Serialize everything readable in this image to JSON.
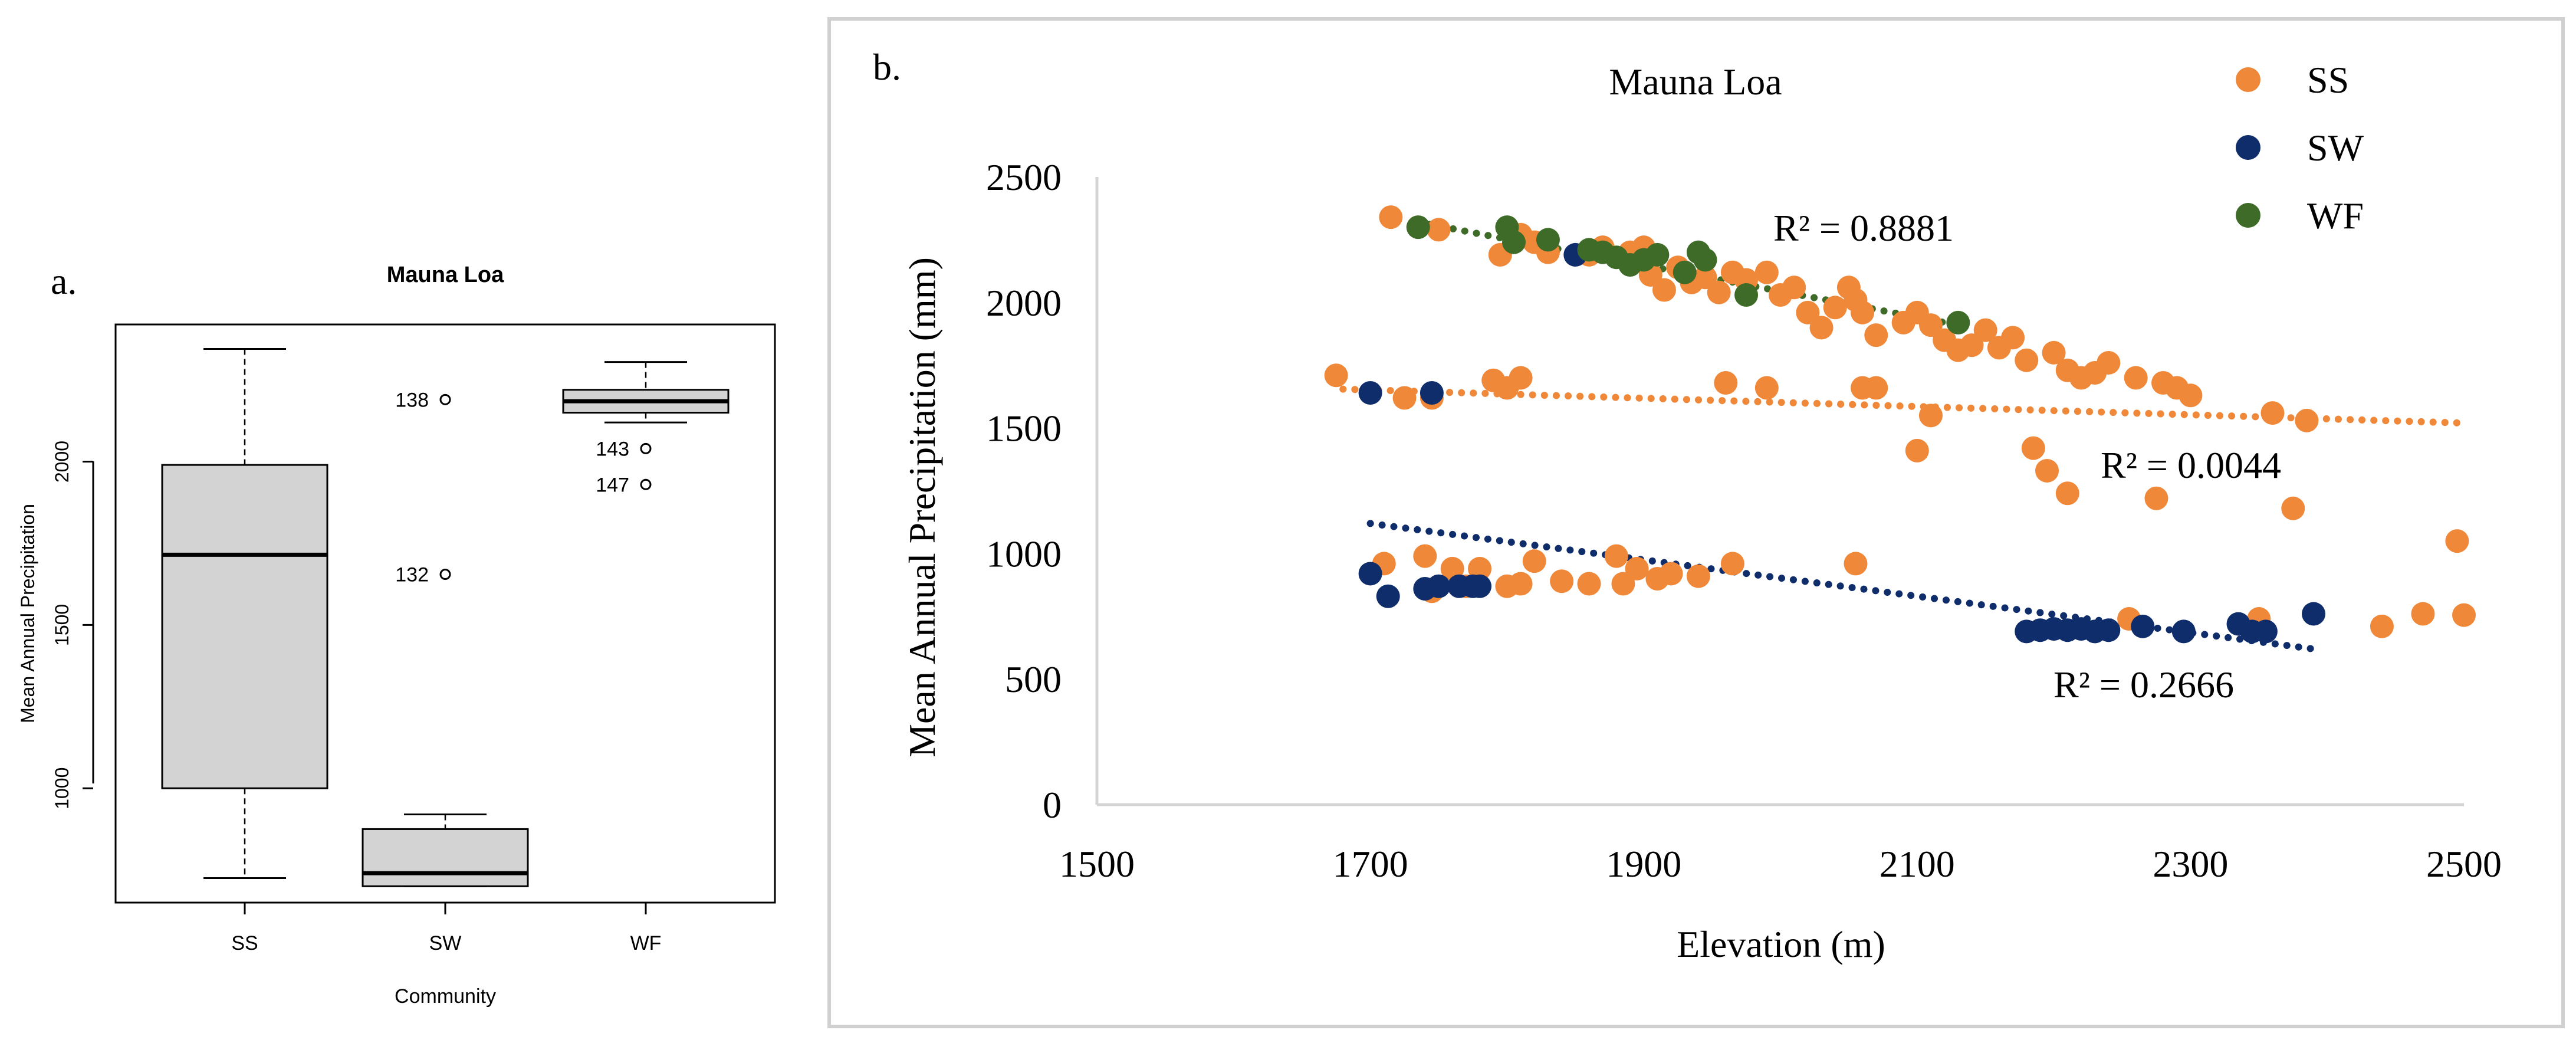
{
  "panel_a": {
    "label": "a.",
    "chart_data": {
      "type": "box",
      "title": "Mauna Loa",
      "xlabel": "Community",
      "ylabel": "Mean Annual Precipitation",
      "categories": [
        "SS",
        "SW",
        "WF"
      ],
      "ylim": [
        650,
        2420
      ],
      "yticks": [
        1000,
        1500,
        2000
      ],
      "boxes": [
        {
          "name": "SS",
          "min": 725,
          "q1": 1000,
          "median": 1715,
          "q3": 1990,
          "max": 2345,
          "outliers": []
        },
        {
          "name": "SW",
          "min": 700,
          "q1": 700,
          "median": 740,
          "q3": 875,
          "max": 920,
          "outliers": [
            {
              "value": 2190,
              "label": "138"
            },
            {
              "value": 1655,
              "label": "132"
            }
          ]
        },
        {
          "name": "WF",
          "min": 2120,
          "q1": 2150,
          "median": 2185,
          "q3": 2220,
          "max": 2305,
          "outliers": [
            {
              "value": 2040,
              "label": "143"
            },
            {
              "value": 1930,
              "label": "147"
            }
          ]
        }
      ]
    }
  },
  "panel_b": {
    "label": "b.",
    "chart_data": {
      "type": "scatter",
      "title": "Mauna Loa",
      "xlabel": "Elevation (m)",
      "ylabel": "Mean Annual Precipitation (mm)",
      "xlim": [
        1500,
        2500
      ],
      "ylim": [
        0,
        2500
      ],
      "xticks": [
        1500,
        1700,
        1900,
        2100,
        2300,
        2500
      ],
      "yticks": [
        0,
        500,
        1000,
        1500,
        2000,
        2500
      ],
      "legend_position": "top-right",
      "series": [
        {
          "name": "SS",
          "color": "#f0883a",
          "points": [
            [
              1715,
              2340
            ],
            [
              1750,
              2290
            ],
            [
              1795,
              2190
            ],
            [
              1810,
              2270
            ],
            [
              1820,
              2240
            ],
            [
              1830,
              2200
            ],
            [
              1860,
              2190
            ],
            [
              1870,
              2220
            ],
            [
              1890,
              2200
            ],
            [
              1900,
              2220
            ],
            [
              1905,
              2110
            ],
            [
              1915,
              2050
            ],
            [
              1925,
              2140
            ],
            [
              1935,
              2080
            ],
            [
              1945,
              2100
            ],
            [
              1955,
              2040
            ],
            [
              1965,
              2120
            ],
            [
              1975,
              2090
            ],
            [
              1990,
              2120
            ],
            [
              2000,
              2030
            ],
            [
              2010,
              2060
            ],
            [
              2020,
              1960
            ],
            [
              2030,
              1900
            ],
            [
              2040,
              1980
            ],
            [
              2050,
              2060
            ],
            [
              2055,
              2010
            ],
            [
              2060,
              1960
            ],
            [
              2070,
              1870
            ],
            [
              2090,
              1920
            ],
            [
              2100,
              1960
            ],
            [
              2110,
              1910
            ],
            [
              2120,
              1850
            ],
            [
              2130,
              1810
            ],
            [
              2140,
              1830
            ],
            [
              2150,
              1890
            ],
            [
              2160,
              1820
            ],
            [
              2170,
              1860
            ],
            [
              2180,
              1770
            ],
            [
              2200,
              1800
            ],
            [
              2210,
              1730
            ],
            [
              2220,
              1700
            ],
            [
              2230,
              1720
            ],
            [
              2240,
              1760
            ],
            [
              2260,
              1700
            ],
            [
              2280,
              1680
            ],
            [
              2290,
              1660
            ],
            [
              2300,
              1630
            ],
            [
              1675,
              1710
            ],
            [
              1725,
              1620
            ],
            [
              1745,
              1620
            ],
            [
              1790,
              1690
            ],
            [
              1800,
              1660
            ],
            [
              1810,
              1700
            ],
            [
              1960,
              1680
            ],
            [
              1990,
              1660
            ],
            [
              2060,
              1660
            ],
            [
              2070,
              1660
            ],
            [
              2100,
              1410
            ],
            [
              2110,
              1550
            ],
            [
              2185,
              1420
            ],
            [
              2195,
              1330
            ],
            [
              2210,
              1240
            ],
            [
              2275,
              1220
            ],
            [
              2360,
              1560
            ],
            [
              2375,
              1180
            ],
            [
              2385,
              1530
            ],
            [
              1710,
              960
            ],
            [
              1740,
              990
            ],
            [
              1745,
              850
            ],
            [
              1760,
              940
            ],
            [
              1770,
              870
            ],
            [
              1780,
              940
            ],
            [
              1800,
              870
            ],
            [
              1810,
              880
            ],
            [
              1820,
              970
            ],
            [
              1840,
              890
            ],
            [
              1860,
              880
            ],
            [
              1880,
              990
            ],
            [
              1885,
              880
            ],
            [
              1895,
              940
            ],
            [
              1910,
              900
            ],
            [
              1920,
              920
            ],
            [
              1940,
              910
            ],
            [
              1965,
              960
            ],
            [
              2055,
              960
            ],
            [
              2255,
              740
            ],
            [
              2350,
              740
            ],
            [
              2440,
              710
            ],
            [
              2470,
              760
            ],
            [
              2495,
              1050
            ],
            [
              2500,
              755
            ]
          ]
        },
        {
          "name": "SW",
          "color": "#0f2d6b",
          "points": [
            [
              1700,
              920
            ],
            [
              1700,
              1640
            ],
            [
              1713,
              830
            ],
            [
              1740,
              860
            ],
            [
              1745,
              1640
            ],
            [
              1750,
              870
            ],
            [
              1765,
              870
            ],
            [
              1775,
              870
            ],
            [
              1780,
              870
            ],
            [
              1850,
              2190
            ],
            [
              2180,
              690
            ],
            [
              2190,
              695
            ],
            [
              2200,
              700
            ],
            [
              2210,
              695
            ],
            [
              2220,
              700
            ],
            [
              2230,
              690
            ],
            [
              2240,
              695
            ],
            [
              2265,
              710
            ],
            [
              2295,
              690
            ],
            [
              2335,
              720
            ],
            [
              2345,
              690
            ],
            [
              2355,
              690
            ],
            [
              2390,
              760
            ]
          ]
        },
        {
          "name": "WF",
          "color": "#3e6b27",
          "points": [
            [
              1735,
              2300
            ],
            [
              1800,
              2300
            ],
            [
              1805,
              2240
            ],
            [
              1830,
              2250
            ],
            [
              1860,
              2210
            ],
            [
              1870,
              2200
            ],
            [
              1880,
              2180
            ],
            [
              1890,
              2150
            ],
            [
              1900,
              2170
            ],
            [
              1910,
              2190
            ],
            [
              1930,
              2120
            ],
            [
              1940,
              2200
            ],
            [
              1945,
              2170
            ],
            [
              1975,
              2030
            ],
            [
              2130,
              1920
            ]
          ]
        }
      ],
      "trendlines": [
        {
          "series": "WF",
          "color": "#3e6b27",
          "x": [
            1735,
            2130
          ],
          "y": [
            2320,
            1910
          ],
          "label": "R² = 0.8881"
        },
        {
          "series": "SS",
          "color": "#f0883a",
          "x": [
            1680,
            2500
          ],
          "y": [
            1655,
            1520
          ],
          "label": "R² = 0.0044"
        },
        {
          "series": "SW",
          "color": "#0f2d6b",
          "x": [
            1700,
            2390
          ],
          "y": [
            1120,
            620
          ],
          "label": "R² = 0.2666"
        }
      ]
    }
  }
}
